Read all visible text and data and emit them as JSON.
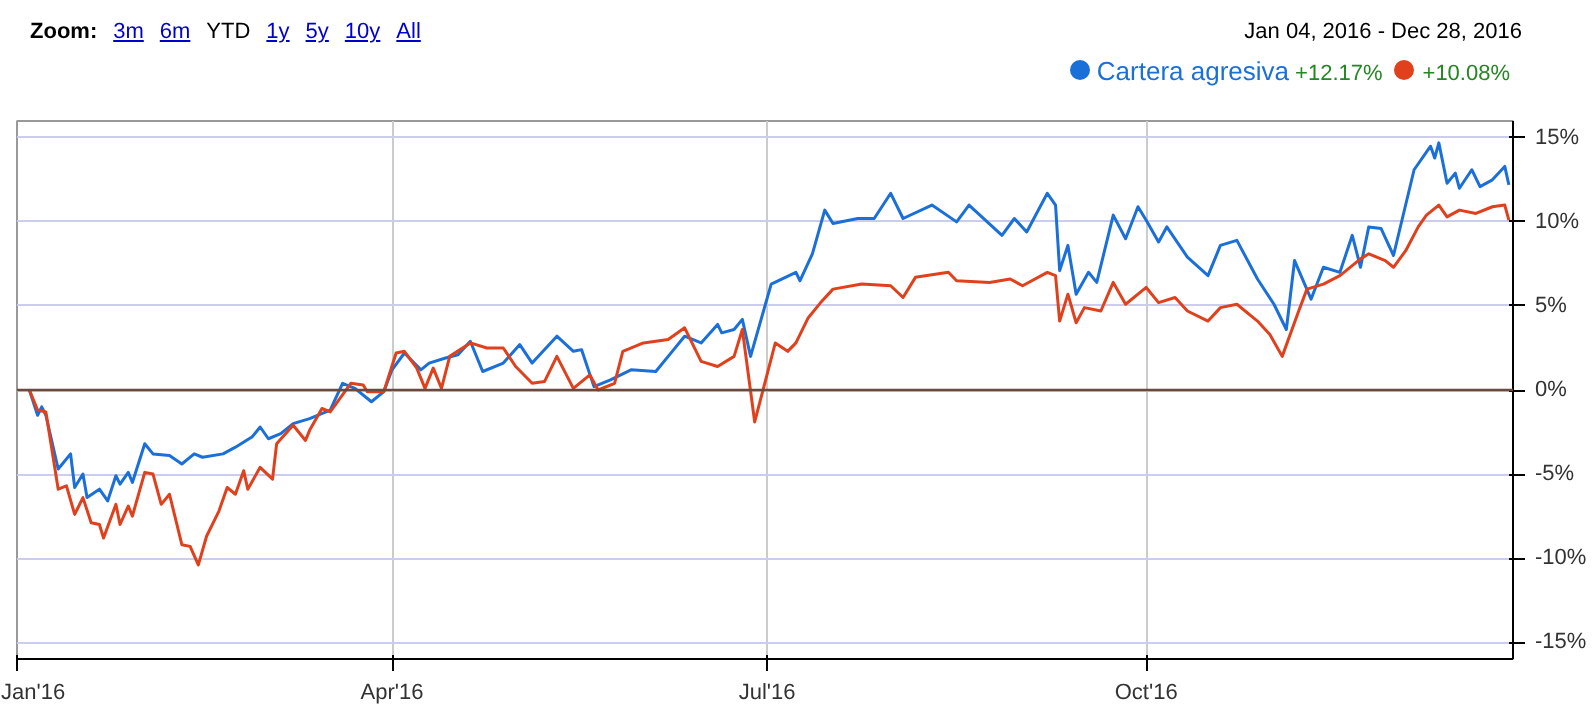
{
  "chart_data": {
    "type": "line",
    "annotations": [
      "Zoom:",
      "3m",
      "6m",
      "YTD",
      "1y",
      "5y",
      "10y",
      "All",
      "Jan 04, 2016  -  Dec 28, 2016",
      "+12.17%",
      "+10.08%"
    ],
    "xlim": [
      "2016-01-01",
      "2016-12-29"
    ],
    "xticks": [
      {
        "value": "2016-01-01",
        "label": "Jan'16"
      },
      {
        "value": "2016-04-01",
        "label": "Apr'16"
      },
      {
        "value": "2016-07-01",
        "label": "Jul'16"
      },
      {
        "value": "2016-10-01",
        "label": "Oct'16"
      }
    ],
    "ylim": [
      -16,
      16
    ],
    "yticks": [
      {
        "value": -15,
        "label": "-15%"
      },
      {
        "value": -10,
        "label": "-10%"
      },
      {
        "value": -5,
        "label": "-5%"
      },
      {
        "value": 0,
        "label": "0%"
      },
      {
        "value": 5,
        "label": "5%"
      },
      {
        "value": 10,
        "label": "10%"
      },
      {
        "value": 15,
        "label": "15%"
      }
    ],
    "grid": true,
    "legend": "top right",
    "ref_lines": [
      {
        "axis": "y",
        "value": 0,
        "label": null,
        "color": "#6b4a3e"
      }
    ],
    "series": [
      {
        "name": "Cartera agresiva",
        "color": "#1a6fd9",
        "x": [
          "2016-01-04",
          "2016-01-06",
          "2016-01-07",
          "2016-01-08",
          "2016-01-11",
          "2016-01-14",
          "2016-01-15",
          "2016-01-17",
          "2016-01-18",
          "2016-01-21",
          "2016-01-23",
          "2016-01-25",
          "2016-01-26",
          "2016-01-28",
          "2016-01-29",
          "2016-02-01",
          "2016-02-03",
          "2016-02-07",
          "2016-02-10",
          "2016-02-13",
          "2016-02-15",
          "2016-02-20",
          "2016-02-23",
          "2016-02-27",
          "2016-02-29",
          "2016-03-02",
          "2016-03-05",
          "2016-03-08",
          "2016-03-12",
          "2016-03-17",
          "2016-03-20",
          "2016-03-23",
          "2016-03-27",
          "2016-03-30",
          "2016-04-01",
          "2016-04-04",
          "2016-04-08",
          "2016-04-10",
          "2016-04-14",
          "2016-04-17",
          "2016-04-20",
          "2016-04-23",
          "2016-04-28",
          "2016-05-02",
          "2016-05-05",
          "2016-05-11",
          "2016-05-15",
          "2016-05-17",
          "2016-05-20",
          "2016-05-24",
          "2016-05-29",
          "2016-06-04",
          "2016-06-08",
          "2016-06-11",
          "2016-06-15",
          "2016-06-19",
          "2016-06-20",
          "2016-06-23",
          "2016-06-25",
          "2016-06-27",
          "2016-07-02",
          "2016-07-08",
          "2016-07-09",
          "2016-07-12",
          "2016-07-15",
          "2016-07-17",
          "2016-07-23",
          "2016-07-27",
          "2016-07-31",
          "2016-08-03",
          "2016-08-10",
          "2016-08-16",
          "2016-08-19",
          "2016-08-27",
          "2016-08-30",
          "2016-09-02",
          "2016-09-07",
          "2016-09-09",
          "2016-09-10",
          "2016-09-12",
          "2016-09-14",
          "2016-09-17",
          "2016-09-19",
          "2016-09-23",
          "2016-09-26",
          "2016-09-29",
          "2016-10-01",
          "2016-10-04",
          "2016-10-06",
          "2016-10-11",
          "2016-10-16",
          "2016-10-19",
          "2016-10-23",
          "2016-10-28",
          "2016-11-01",
          "2016-11-04",
          "2016-11-06",
          "2016-11-10",
          "2016-11-13",
          "2016-11-17",
          "2016-11-20",
          "2016-11-22",
          "2016-11-24",
          "2016-11-27",
          "2016-11-30",
          "2016-12-05",
          "2016-12-09",
          "2016-12-10",
          "2016-12-11",
          "2016-12-13",
          "2016-12-15",
          "2016-12-16",
          "2016-12-19",
          "2016-12-21",
          "2016-12-24",
          "2016-12-27",
          "2016-12-28"
        ],
        "values": [
          0,
          -1.5,
          -1,
          -1.5,
          -4.7,
          -3.8,
          -5.8,
          -5.0,
          -6.4,
          -5.9,
          -6.6,
          -5.1,
          -5.6,
          -4.9,
          -5.5,
          -3.2,
          -3.8,
          -3.9,
          -4.4,
          -3.8,
          -4.0,
          -3.8,
          -3.4,
          -2.8,
          -2.2,
          -2.9,
          -2.6,
          -2.0,
          -1.7,
          -1.2,
          0.4,
          0.1,
          -0.7,
          -0.1,
          1.2,
          2.2,
          1.2,
          1.6,
          1.9,
          2.1,
          2.9,
          1.1,
          1.6,
          2.7,
          1.6,
          3.2,
          2.3,
          2.4,
          0.2,
          0.6,
          1.2,
          1.1,
          2.3,
          3.2,
          2.8,
          3.9,
          3.4,
          3.6,
          4.2,
          2.0,
          6.3,
          7.0,
          6.5,
          8.1,
          10.7,
          9.9,
          10.2,
          10.2,
          11.7,
          10.2,
          11.0,
          10.0,
          11.0,
          9.2,
          10.2,
          9.4,
          11.7,
          11.0,
          7.1,
          8.6,
          5.7,
          7.0,
          6.4,
          10.4,
          9.0,
          10.9,
          10.1,
          8.8,
          9.7,
          7.9,
          6.8,
          8.6,
          8.9,
          6.6,
          5.1,
          3.6,
          7.7,
          5.4,
          7.3,
          7.0,
          9.2,
          7.3,
          9.7,
          9.6,
          8.0,
          13.1,
          14.5,
          13.8,
          14.7,
          12.3,
          12.9,
          12.0,
          13.1,
          12.1,
          12.5,
          13.3,
          12.2
        ]
      },
      {
        "color": "#e0401c",
        "x": [
          "2016-01-04",
          "2016-01-06",
          "2016-01-08",
          "2016-01-11",
          "2016-01-13",
          "2016-01-15",
          "2016-01-17",
          "2016-01-19",
          "2016-01-21",
          "2016-01-22",
          "2016-01-25",
          "2016-01-26",
          "2016-01-28",
          "2016-01-29",
          "2016-02-01",
          "2016-02-03",
          "2016-02-05",
          "2016-02-07",
          "2016-02-10",
          "2016-02-12",
          "2016-02-14",
          "2016-02-16",
          "2016-02-19",
          "2016-02-21",
          "2016-02-23",
          "2016-02-25",
          "2016-02-26",
          "2016-02-29",
          "2016-03-03",
          "2016-03-04",
          "2016-03-08",
          "2016-03-11",
          "2016-03-12",
          "2016-03-15",
          "2016-03-17",
          "2016-03-22",
          "2016-03-25",
          "2016-03-26",
          "2016-03-30",
          "2016-04-02",
          "2016-04-04",
          "2016-04-07",
          "2016-04-09",
          "2016-04-11",
          "2016-04-13",
          "2016-04-15",
          "2016-04-20",
          "2016-04-24",
          "2016-04-28",
          "2016-05-01",
          "2016-05-05",
          "2016-05-08",
          "2016-05-11",
          "2016-05-15",
          "2016-05-19",
          "2016-05-21",
          "2016-05-25",
          "2016-05-27",
          "2016-06-01",
          "2016-06-07",
          "2016-06-11",
          "2016-06-15",
          "2016-06-19",
          "2016-06-23",
          "2016-06-25",
          "2016-06-28",
          "2016-07-03",
          "2016-07-06",
          "2016-07-08",
          "2016-07-11",
          "2016-07-14",
          "2016-07-17",
          "2016-07-24",
          "2016-07-31",
          "2016-08-03",
          "2016-08-06",
          "2016-08-14",
          "2016-08-16",
          "2016-08-24",
          "2016-08-29",
          "2016-09-01",
          "2016-09-07",
          "2016-09-09",
          "2016-09-10",
          "2016-09-12",
          "2016-09-14",
          "2016-09-16",
          "2016-09-20",
          "2016-09-23",
          "2016-09-26",
          "2016-10-01",
          "2016-10-04",
          "2016-10-08",
          "2016-10-11",
          "2016-10-16",
          "2016-10-19",
          "2016-10-23",
          "2016-10-28",
          "2016-10-31",
          "2016-11-03",
          "2016-11-07",
          "2016-11-09",
          "2016-11-13",
          "2016-11-17",
          "2016-11-22",
          "2016-11-24",
          "2016-11-28",
          "2016-11-30",
          "2016-12-03",
          "2016-12-06",
          "2016-12-08",
          "2016-12-11",
          "2016-12-13",
          "2016-12-16",
          "2016-12-20",
          "2016-12-24",
          "2016-12-27",
          "2016-12-28"
        ],
        "values": [
          0,
          -1.2,
          -1.3,
          -5.9,
          -5.7,
          -7.4,
          -6.4,
          -7.9,
          -8.0,
          -8.8,
          -6.8,
          -8.0,
          -6.9,
          -7.5,
          -4.9,
          -5.0,
          -6.8,
          -6.2,
          -9.2,
          -9.3,
          -10.4,
          -8.7,
          -7.2,
          -5.8,
          -6.2,
          -4.8,
          -5.9,
          -4.6,
          -5.3,
          -3.2,
          -2.1,
          -3.0,
          -2.4,
          -1.1,
          -1.3,
          0.4,
          0.3,
          -0.1,
          -0.1,
          2.2,
          2.3,
          1.3,
          0.1,
          1.3,
          0.1,
          2.0,
          2.8,
          2.5,
          2.5,
          1.4,
          0.4,
          0.5,
          2.0,
          0.1,
          0.9,
          0,
          0.4,
          2.3,
          2.8,
          3.0,
          3.7,
          1.7,
          1.4,
          2.0,
          3.6,
          -1.9,
          2.8,
          2.3,
          2.8,
          4.3,
          5.2,
          6.0,
          6.3,
          6.2,
          5.5,
          6.7,
          7.0,
          6.5,
          6.4,
          6.6,
          6.2,
          7.0,
          6.8,
          4.1,
          5.7,
          4.0,
          4.9,
          4.7,
          6.4,
          5.1,
          6.1,
          5.2,
          5.5,
          4.7,
          4.1,
          4.9,
          5.1,
          4.1,
          3.3,
          2.0,
          4.7,
          6.0,
          6.3,
          6.8,
          7.8,
          8.1,
          7.7,
          7.3,
          8.3,
          9.7,
          10.4,
          11.0,
          10.3,
          10.7,
          10.5,
          10.9,
          11.0,
          10.1
        ]
      }
    ]
  }
}
